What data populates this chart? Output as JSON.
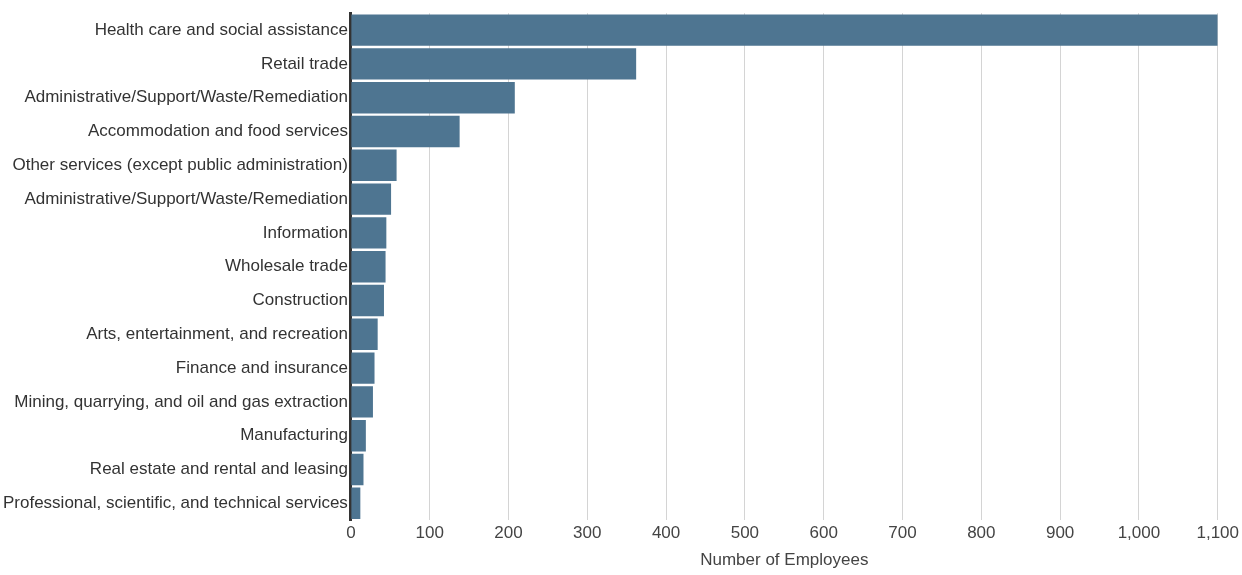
{
  "chart_data": {
    "type": "bar",
    "orientation": "horizontal",
    "xlabel": "Number of Employees",
    "categories": [
      "Health care and social assistance",
      "Retail trade",
      "Administrative/Support/Waste/Remediation",
      "Accommodation and food services",
      "Other services (except public administration)",
      "Administrative/Support/Waste/Remediation",
      "Information",
      "Wholesale trade",
      "Construction",
      "Arts, entertainment, and recreation",
      "Finance and insurance",
      "Mining, quarrying, and oil and gas extraction",
      "Manufacturing",
      "Real estate and rental and leasing",
      "Professional, scientific, and technical services"
    ],
    "values": [
      1100,
      362,
      208,
      138,
      58,
      51,
      45,
      44,
      42,
      34,
      30,
      28,
      19,
      16,
      12
    ],
    "color": "#4e7591",
    "xlim": [
      0,
      1100
    ],
    "xticks": [
      0,
      100,
      200,
      300,
      400,
      500,
      600,
      700,
      800,
      900,
      {
        "value": 1000,
        "label": "1,000"
      },
      {
        "value": 1100,
        "label": "1,100"
      }
    ],
    "grid": "x",
    "legend": false
  }
}
